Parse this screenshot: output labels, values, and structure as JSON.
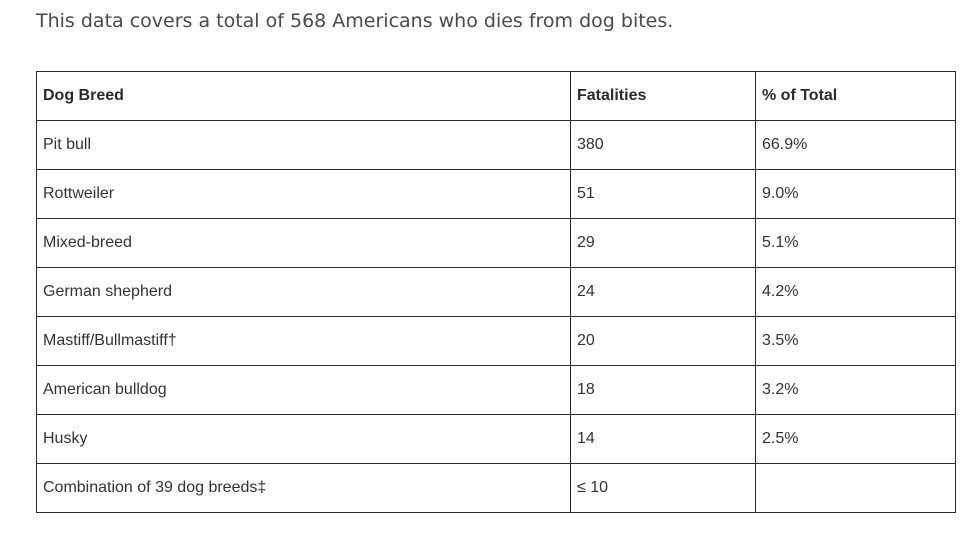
{
  "intro": "This data covers a total of 568 Americans who dies from dog bites.",
  "table": {
    "headers": [
      "Dog Breed",
      "Fatalities",
      "% of Total"
    ],
    "rows": [
      [
        "Pit bull",
        "380",
        "66.9%"
      ],
      [
        "Rottweiler",
        "51",
        "9.0%"
      ],
      [
        "Mixed-breed",
        "29",
        "5.1%"
      ],
      [
        "German shepherd",
        "24",
        "4.2%"
      ],
      [
        "Mastiff/Bullmastiff†",
        "20",
        "3.5%"
      ],
      [
        "American bulldog",
        "18",
        "3.2%"
      ],
      [
        "Husky",
        "14",
        "2.5%"
      ],
      [
        "Combination of 39 dog breeds‡",
        "≤ 10",
        ""
      ]
    ]
  }
}
